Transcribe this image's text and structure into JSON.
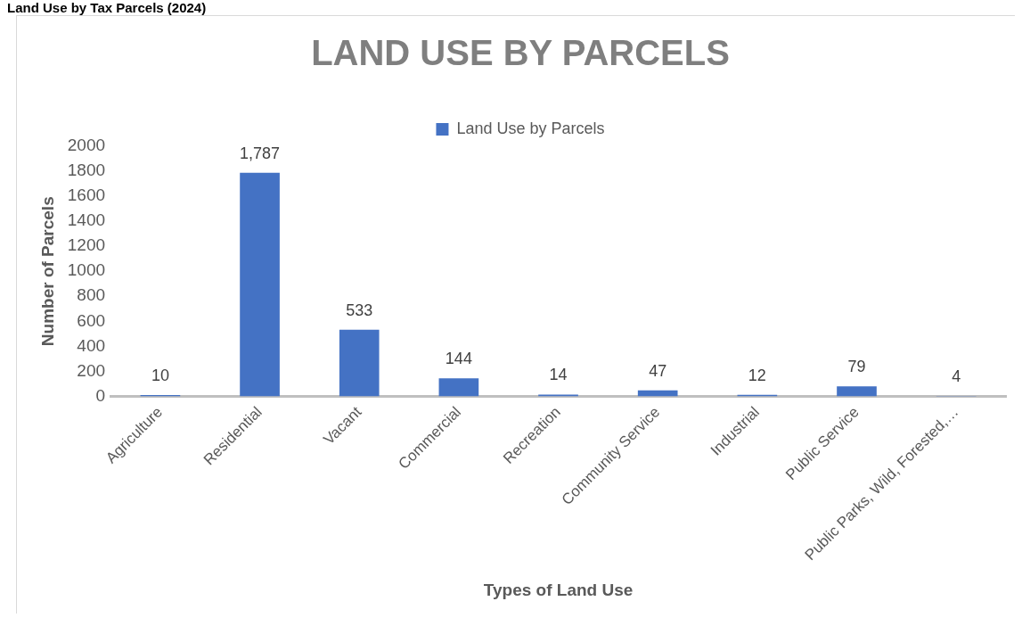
{
  "chart_data": {
    "type": "bar",
    "title": "LAND USE BY PARCELS",
    "xlabel": "Types of Land Use",
    "ylabel": "Number of Parcels",
    "annotations": [
      "Land Use by Tax Parcels (2024)"
    ],
    "categories": [
      "Agriculture",
      "Residential",
      "Vacant",
      "Commercial",
      "Recreation",
      "Community Service",
      "Industrial",
      "Public Service",
      "Public Parks, Wild, Forested,…"
    ],
    "series": [
      {
        "name": "Land Use by Parcels",
        "color": "#4472c4",
        "values": [
          10,
          1787,
          533,
          144,
          14,
          47,
          12,
          79,
          4
        ],
        "value_labels": [
          "10",
          "1,787",
          "533",
          "144",
          "14",
          "47",
          "12",
          "79",
          "4"
        ]
      }
    ],
    "ylim": [
      0,
      2000
    ],
    "yticks": [
      0,
      200,
      400,
      600,
      800,
      1000,
      1200,
      1400,
      1600,
      1800,
      2000
    ],
    "grid": false,
    "legend": "top"
  }
}
